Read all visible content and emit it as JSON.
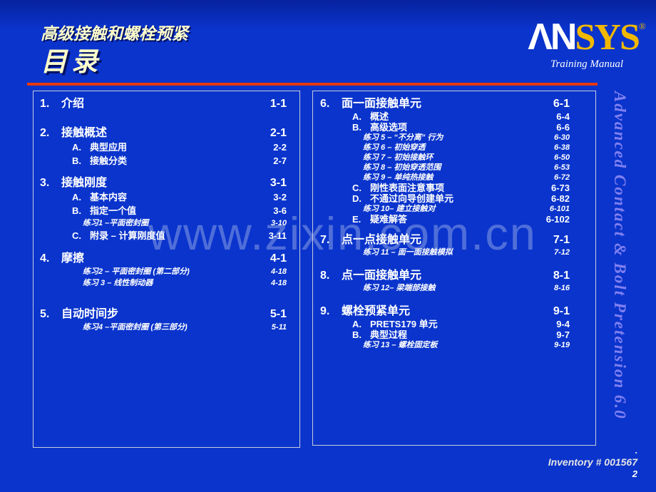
{
  "header": {
    "course_title": "高级接触和螺栓预紧",
    "slide_title": "目录",
    "logo": {
      "an": "ΛN",
      "sys": "SYS",
      "reg": "®",
      "tagline": "Training Manual"
    }
  },
  "side_text": "Advanced Contact & Bolt Pretension 6.0",
  "watermark": "www.zixin.com.cn",
  "footer": {
    "dot": ".",
    "inventory": "Inventory # 001567",
    "page_number": "2"
  },
  "colors": {
    "background_blue": "#0a34cc",
    "accent_red": "#e8380d",
    "title_yellow": "#ffffcc",
    "logo_gold": "#f2b800",
    "side_text_purple": "#8080f0",
    "box_border": "#c9cfdd",
    "text_white": "#ffffff"
  },
  "toc": {
    "left": [
      {
        "num": "1.",
        "title": "介绍",
        "page": "1-1",
        "items": []
      },
      {
        "num": "2.",
        "title": "接触概述",
        "page": "2-1",
        "items": [
          {
            "kind": "sub",
            "label": "A.",
            "text": "典型应用",
            "page": "2-2"
          },
          {
            "kind": "sub",
            "label": "B.",
            "text": "接触分类",
            "page": "2-7"
          }
        ]
      },
      {
        "num": "3.",
        "title": "接触刚度",
        "page": "3-1",
        "items": [
          {
            "kind": "sub",
            "label": "A.",
            "text": "基本内容",
            "page": "3-2"
          },
          {
            "kind": "sub",
            "label": "B.",
            "text": "指定一个值",
            "page": "3-6"
          },
          {
            "kind": "ex",
            "text": "练习1 –平面密封圈",
            "page": "3-10"
          },
          {
            "kind": "sub",
            "label": "C.",
            "text": "附录 – 计算刚度值",
            "page": "3-11"
          }
        ]
      },
      {
        "num": "4.",
        "title": "摩擦",
        "page": "4-1",
        "items": [
          {
            "kind": "ex",
            "text": "练习2 – 平面密封圈 (第二部分)",
            "page": "4-18"
          },
          {
            "kind": "ex",
            "text": "练习 3 – 线性制动器",
            "page": "4-18"
          }
        ]
      },
      {
        "num": "5.",
        "title": "自动时间步",
        "page": "5-1",
        "items": [
          {
            "kind": "ex",
            "text": "练习4 –平面密封圈 (第三部分)",
            "page": "5-11"
          }
        ]
      }
    ],
    "right": [
      {
        "num": "6.",
        "title": "面一面接触单元",
        "page": "6-1",
        "items": [
          {
            "kind": "sub",
            "label": "A.",
            "text": "概述",
            "page": "6-4"
          },
          {
            "kind": "sub",
            "label": "B.",
            "text": "高级选项",
            "page": "6-6"
          },
          {
            "kind": "ex",
            "text": "练习 5 – “不分离” 行为",
            "page": "6-30"
          },
          {
            "kind": "ex",
            "text": "练习 6 – 初始穿透",
            "page": "6-38"
          },
          {
            "kind": "ex",
            "text": "练习 7 – 初始接触环",
            "page": "6-50"
          },
          {
            "kind": "ex",
            "text": "练习 8 – 初始穿透范围",
            "page": "6-53"
          },
          {
            "kind": "ex",
            "text": "练习 9 – 单纯热接触",
            "page": "6-72"
          },
          {
            "kind": "sub",
            "label": "C.",
            "text": "刚性表面注意事项",
            "page": "6-73"
          },
          {
            "kind": "sub",
            "label": "D.",
            "text": "不通过向导创建单元",
            "page": "6-82"
          },
          {
            "kind": "ex",
            "text": "练习 10– 建立接触对",
            "page": "6-101"
          },
          {
            "kind": "sub",
            "label": "E.",
            "text": "疑难解答",
            "page": "6-102"
          }
        ]
      },
      {
        "num": "7.",
        "title": "点一点接触单元",
        "page": "7-1",
        "items": [
          {
            "kind": "ex",
            "text": "练习 11 – 面一面接触模拟",
            "page": "7-12"
          }
        ]
      },
      {
        "num": "8.",
        "title": "点一面接触单元",
        "page": "8-1",
        "items": [
          {
            "kind": "ex",
            "text": "练习 12– 梁端部接触",
            "page": "8-16"
          }
        ]
      },
      {
        "num": "9.",
        "title": "螺栓预紧单元",
        "page": "9-1",
        "items": [
          {
            "kind": "sub",
            "label": "A.",
            "text": "PRETS179 单元",
            "page": "9-4"
          },
          {
            "kind": "sub",
            "label": "B.",
            "text": "典型过程",
            "page": "9-7"
          },
          {
            "kind": "ex",
            "text": "练习 13 – 螺栓固定板",
            "page": "9-19"
          }
        ]
      }
    ]
  }
}
